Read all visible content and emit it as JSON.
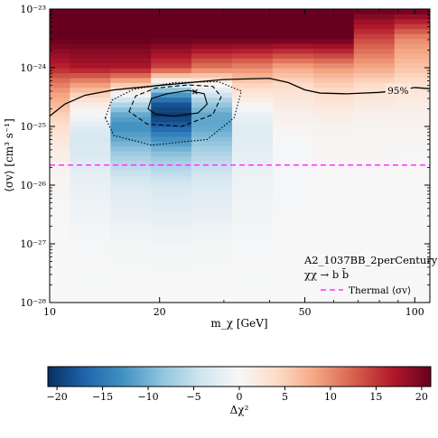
{
  "chart_data": {
    "type": "heatmap",
    "x_axis": {
      "label": "m_χ [GeV]",
      "scale": "log",
      "range": [
        10,
        110
      ],
      "major_ticks": [
        10,
        20,
        50,
        100
      ],
      "major_tick_labels": [
        "10",
        "20",
        "50",
        "100"
      ]
    },
    "y_axis": {
      "label": "⟨σv⟩ [cm³ s⁻¹]",
      "scale": "log",
      "range": [
        1e-28,
        1e-23
      ],
      "major_ticks": [
        1e-28,
        1e-27,
        1e-26,
        1e-25,
        1e-24,
        1e-23
      ],
      "major_tick_labels": [
        "10⁻²⁸",
        "10⁻²⁷",
        "10⁻²⁶",
        "10⁻²⁵",
        "10⁻²⁴",
        "10⁻²³"
      ]
    },
    "masses_gev": [
      10,
      12.9,
      16.7,
      21.5,
      27.8,
      35.9,
      46.4,
      59.9,
      77.4,
      100
    ],
    "delta_chi2_profile": {
      "description": "Delta chi^2 along each mass column, sampled at log10(sigma v) values",
      "log10_sigmav": [
        -28,
        -27,
        -26,
        -25.5,
        -25.2,
        -25,
        -24.8,
        -24.6,
        -24.4,
        -24.2,
        -24,
        -23.5,
        -23
      ],
      "columns": [
        {
          "mass": 10,
          "delta_chi2": [
            0,
            0,
            0.3,
            1.2,
            2.5,
            3.5,
            5,
            7,
            9,
            12,
            16,
            21,
            21
          ]
        },
        {
          "mass": 12.9,
          "delta_chi2": [
            0,
            -0.2,
            -1.5,
            -3,
            -3.5,
            -2.5,
            -0.5,
            2,
            6,
            11,
            17,
            21,
            21
          ]
        },
        {
          "mass": 16.7,
          "delta_chi2": [
            0,
            -0.4,
            -3,
            -7,
            -11,
            -13,
            -11,
            -6,
            1,
            9,
            17,
            21,
            21
          ]
        },
        {
          "mass": 21.5,
          "delta_chi2": [
            0,
            -0.5,
            -3.5,
            -8,
            -13,
            -17,
            -20,
            -18,
            -10,
            2,
            14,
            21,
            21
          ]
        },
        {
          "mass": 27.8,
          "delta_chi2": [
            0,
            -0.4,
            -3,
            -6,
            -9,
            -11,
            -11,
            -8,
            -3,
            3,
            11,
            21,
            21
          ]
        },
        {
          "mass": 35.9,
          "delta_chi2": [
            0,
            -0.2,
            -1,
            -2,
            -2.5,
            -2.5,
            -1.5,
            0.5,
            3,
            6,
            10,
            21,
            21
          ]
        },
        {
          "mass": 46.4,
          "delta_chi2": [
            0,
            0,
            -0.3,
            -0.3,
            0,
            0.5,
            1,
            2,
            3,
            5,
            8,
            21,
            21
          ]
        },
        {
          "mass": 59.9,
          "delta_chi2": [
            0,
            0,
            0,
            0.2,
            0.5,
            0.8,
            1.5,
            2.5,
            4,
            6,
            9,
            21,
            21
          ]
        },
        {
          "mass": 77.4,
          "delta_chi2": [
            0,
            0,
            0,
            0.2,
            0.4,
            0.7,
            1.2,
            2,
            3,
            5,
            8,
            14,
            21
          ]
        },
        {
          "mass": 100,
          "delta_chi2": [
            0,
            0,
            0,
            0.1,
            0.3,
            0.6,
            1,
            1.6,
            2.5,
            4,
            6,
            10,
            21
          ]
        }
      ]
    },
    "best_fit": {
      "mass": 25,
      "sigmav": 3.9e-25,
      "marker": "x"
    },
    "limit_95": {
      "label": "95%",
      "points": [
        {
          "mass": 10,
          "sigmav": 1.5e-25
        },
        {
          "mass": 11,
          "sigmav": 2.4e-25
        },
        {
          "mass": 12.5,
          "sigmav": 3.4e-25
        },
        {
          "mass": 15,
          "sigmav": 4.2e-25
        },
        {
          "mass": 20,
          "sigmav": 5e-25
        },
        {
          "mass": 30,
          "sigmav": 6.3e-25
        },
        {
          "mass": 40,
          "sigmav": 6.6e-25
        },
        {
          "mass": 45,
          "sigmav": 5.6e-25
        },
        {
          "mass": 50,
          "sigmav": 4.2e-25
        },
        {
          "mass": 55,
          "sigmav": 3.7e-25
        },
        {
          "mass": 65,
          "sigmav": 3.6e-25
        },
        {
          "mass": 80,
          "sigmav": 3.8e-25
        },
        {
          "mass": 90,
          "sigmav": 4.1e-25
        },
        {
          "mass": 100,
          "sigmav": 4.6e-25
        },
        {
          "mass": 110,
          "sigmav": 4.4e-25
        }
      ]
    },
    "contours": [
      {
        "level": "1sigma",
        "style": "solid",
        "points": [
          {
            "mass": 18.6,
            "sigmav": 2e-25
          },
          {
            "mass": 19.0,
            "sigmav": 3e-25
          },
          {
            "mass": 21.0,
            "sigmav": 3.6e-25
          },
          {
            "mass": 24.0,
            "sigmav": 4.1e-25
          },
          {
            "mass": 26.5,
            "sigmav": 3.6e-25
          },
          {
            "mass": 27.0,
            "sigmav": 2.4e-25
          },
          {
            "mass": 25.5,
            "sigmav": 1.7e-25
          },
          {
            "mass": 22.0,
            "sigmav": 1.5e-25
          },
          {
            "mass": 19.5,
            "sigmav": 1.6e-25
          }
        ]
      },
      {
        "level": "2sigma",
        "style": "dashed",
        "points": [
          {
            "mass": 16.5,
            "sigmav": 1.8e-25
          },
          {
            "mass": 17.2,
            "sigmav": 3.3e-25
          },
          {
            "mass": 19.5,
            "sigmav": 4.5e-25
          },
          {
            "mass": 24.0,
            "sigmav": 5.1e-25
          },
          {
            "mass": 28.0,
            "sigmav": 4.8e-25
          },
          {
            "mass": 29.5,
            "sigmav": 3.2e-25
          },
          {
            "mass": 28.0,
            "sigmav": 1.6e-25
          },
          {
            "mass": 23.0,
            "sigmav": 1e-25
          },
          {
            "mass": 18.5,
            "sigmav": 1.1e-25
          }
        ]
      },
      {
        "level": "3sigma",
        "style": "dotted",
        "points": [
          {
            "mass": 14.2,
            "sigmav": 1.4e-25
          },
          {
            "mass": 14.8,
            "sigmav": 2.8e-25
          },
          {
            "mass": 17.0,
            "sigmav": 4.3e-25
          },
          {
            "mass": 22.0,
            "sigmav": 5.6e-25
          },
          {
            "mass": 29.0,
            "sigmav": 5.8e-25
          },
          {
            "mass": 33.5,
            "sigmav": 4e-25
          },
          {
            "mass": 32.0,
            "sigmav": 1.4e-25
          },
          {
            "mass": 27.0,
            "sigmav": 6e-26
          },
          {
            "mass": 19.0,
            "sigmav": 4.8e-26
          },
          {
            "mass": 15.0,
            "sigmav": 7e-26
          }
        ]
      }
    ],
    "thermal_line": {
      "label": "Thermal ⟨σv⟩",
      "sigmav": 2.2e-26,
      "color": "#ff33ff",
      "style": "dashed"
    },
    "annotation": {
      "line1": "A2_1037BB_2perCentury",
      "line2": "χχ → b b̄"
    },
    "legend": {
      "placement": "bottom-right"
    },
    "colorbar": {
      "label": "Δχ²",
      "range": [
        -21,
        21
      ],
      "ticks": [
        -20,
        -15,
        -10,
        -5,
        0,
        5,
        10,
        15,
        20
      ],
      "tick_labels": [
        "−20",
        "−15",
        "−10",
        "−5",
        "0",
        "5",
        "10",
        "15",
        "20"
      ],
      "colormap": "RdBu_r",
      "colors": [
        "#053061",
        "#2166ac",
        "#4393c3",
        "#92c5de",
        "#d1e5f0",
        "#f7f7f7",
        "#fddbc7",
        "#f4a582",
        "#d6604d",
        "#b2182b",
        "#67001f"
      ]
    }
  }
}
